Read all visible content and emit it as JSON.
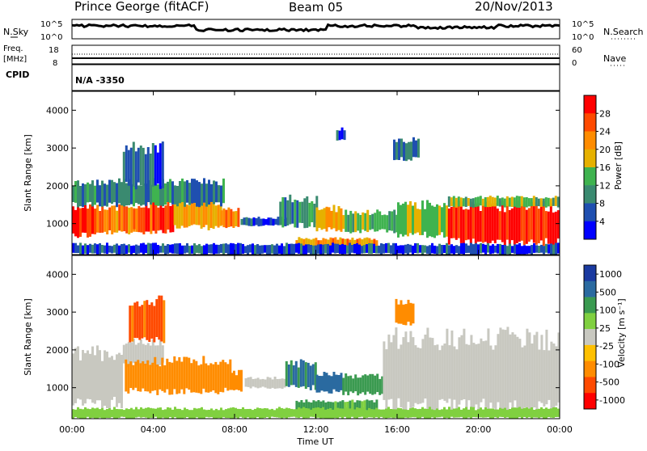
{
  "header": {
    "station": "Prince George (fitACF)",
    "beam": "Beam 05",
    "date": "20/Nov/2013"
  },
  "noise_panel": {
    "left_label": "N.Sky",
    "right_label": "N.Search",
    "left_ticks": [
      "10^5",
      "10^0"
    ],
    "right_ticks": [
      "10^5",
      "10^0"
    ]
  },
  "freq_panel": {
    "left_label": "Freq.",
    "left_unit": "[MHz]",
    "left_ticks": [
      "18",
      "8"
    ],
    "right_label": "Nave",
    "right_ticks": [
      "60",
      "0"
    ]
  },
  "cpid": {
    "label": "CPID",
    "value": "N/A -3350"
  },
  "colors": {
    "power_scale": [
      "#0000ff",
      "#1f4fb0",
      "#3a8a70",
      "#3fb34f",
      "#e6b100",
      "#ff8c00",
      "#ff4a00",
      "#ff0000"
    ],
    "velocity_scale": [
      "#ff0000",
      "#ff4a00",
      "#ff8c00",
      "#ffc000",
      "#c8c8c0",
      "#80d040",
      "#3a9a50",
      "#2a6aa0",
      "#1a3aa0"
    ]
  },
  "chart_data": [
    {
      "type": "heatmap",
      "ylabel": "Slant Range [km]",
      "yticks": [
        1000,
        2000,
        3000,
        4000
      ],
      "ylim": [
        180,
        4500
      ],
      "xlim": [
        0,
        24
      ],
      "colorbar": {
        "label": "Power [dB]",
        "ticks": [
          "28",
          "24",
          "20",
          "16",
          "12",
          "8",
          "4"
        ],
        "range": [
          0,
          30
        ]
      },
      "echo_regions": [
        {
          "t0": 0.0,
          "t1": 1.2,
          "r0": 700,
          "r1": 1500,
          "level": 26
        },
        {
          "t0": 1.2,
          "t1": 3.0,
          "r0": 750,
          "r1": 1450,
          "level": 22
        },
        {
          "t0": 3.0,
          "t1": 5.0,
          "r0": 800,
          "r1": 1500,
          "level": 25
        },
        {
          "t0": 5.0,
          "t1": 7.3,
          "r0": 900,
          "r1": 1550,
          "level": 18
        },
        {
          "t0": 7.3,
          "t1": 8.2,
          "r0": 900,
          "r1": 1400,
          "level": 22
        },
        {
          "t0": 0.0,
          "t1": 7.5,
          "r0": 1500,
          "r1": 2100,
          "level": 9
        },
        {
          "t0": 2.5,
          "t1": 4.5,
          "r0": 2000,
          "r1": 3000,
          "level": 6
        },
        {
          "t0": 8.3,
          "t1": 10.5,
          "r0": 950,
          "r1": 1150,
          "level": 6
        },
        {
          "t0": 10.2,
          "t1": 12.0,
          "r0": 950,
          "r1": 1650,
          "level": 10
        },
        {
          "t0": 12.0,
          "t1": 13.3,
          "r0": 850,
          "r1": 1400,
          "level": 18
        },
        {
          "t0": 13.3,
          "t1": 16.0,
          "r0": 800,
          "r1": 1300,
          "level": 12
        },
        {
          "t0": 13.0,
          "t1": 13.4,
          "r0": 3200,
          "r1": 3500,
          "level": 5
        },
        {
          "t0": 15.8,
          "t1": 17.0,
          "r0": 2700,
          "r1": 3200,
          "level": 6
        },
        {
          "t0": 16.0,
          "t1": 18.5,
          "r0": 700,
          "r1": 1500,
          "level": 16
        },
        {
          "t0": 18.5,
          "t1": 23.9,
          "r0": 500,
          "r1": 1450,
          "level": 28
        },
        {
          "t0": 18.5,
          "t1": 23.9,
          "r0": 1450,
          "r1": 1700,
          "level": 14
        },
        {
          "t0": 11.0,
          "t1": 15.0,
          "r0": 350,
          "r1": 600,
          "level": 20
        },
        {
          "t0": 0.0,
          "t1": 23.9,
          "r0": 200,
          "r1": 450,
          "level": 5
        }
      ]
    },
    {
      "type": "heatmap",
      "ylabel": "Slant Range [km]",
      "yticks": [
        1000,
        2000,
        3000,
        4000
      ],
      "ylim": [
        180,
        4500
      ],
      "xlim": [
        0,
        24
      ],
      "xlabel": "Time UT",
      "xticks": [
        "00:00",
        "04:00",
        "08:00",
        "12:00",
        "16:00",
        "20:00",
        "00:00"
      ],
      "colorbar": {
        "label": "Velocity [m s⁻¹]",
        "ticks": [
          "1000",
          "500",
          "100",
          "25",
          "-25",
          "-100",
          "-500",
          "-1000"
        ],
        "range": [
          -1000,
          1000
        ]
      },
      "echo_regions": [
        {
          "t0": 0.0,
          "t1": 2.5,
          "r0": 600,
          "r1": 1900,
          "level": 0
        },
        {
          "t0": 2.5,
          "t1": 4.5,
          "r0": 1600,
          "r1": 2200,
          "level": 0
        },
        {
          "t0": 2.6,
          "t1": 7.8,
          "r0": 900,
          "r1": 1700,
          "level": -200
        },
        {
          "t0": 7.8,
          "t1": 8.3,
          "r0": 900,
          "r1": 1400,
          "level": -400
        },
        {
          "t0": 8.5,
          "t1": 10.5,
          "r0": 1000,
          "r1": 1250,
          "level": 0
        },
        {
          "t0": 10.5,
          "t1": 12.0,
          "r0": 1000,
          "r1": 1650,
          "level": 300
        },
        {
          "t0": 12.0,
          "t1": 13.3,
          "r0": 900,
          "r1": 1350,
          "level": 400
        },
        {
          "t0": 13.3,
          "t1": 15.3,
          "r0": 850,
          "r1": 1300,
          "level": 200
        },
        {
          "t0": 15.3,
          "t1": 23.9,
          "r0": 500,
          "r1": 2300,
          "level": 0
        },
        {
          "t0": 11.0,
          "t1": 15.0,
          "r0": 400,
          "r1": 650,
          "level": 120
        },
        {
          "t0": 2.8,
          "t1": 4.5,
          "r0": 2300,
          "r1": 3300,
          "level": -600
        },
        {
          "t0": 15.9,
          "t1": 16.8,
          "r0": 2700,
          "r1": 3300,
          "level": -250
        },
        {
          "t0": 0.0,
          "t1": 23.9,
          "r0": 200,
          "r1": 450,
          "level": 60
        }
      ]
    }
  ]
}
